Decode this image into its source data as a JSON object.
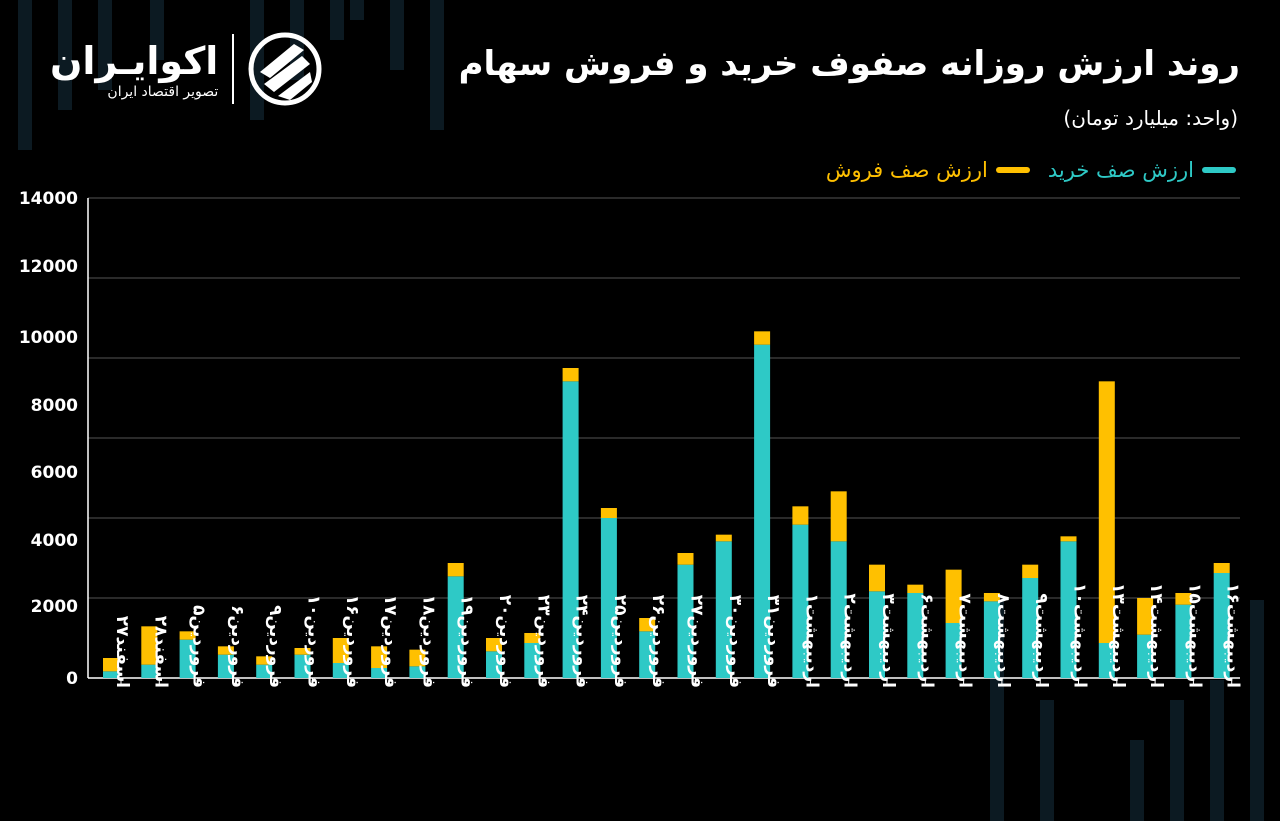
{
  "header": {
    "title": "روند ارزش روزانه صفوف خرید و فروش سهام",
    "unit": "(واحد: میلیارد تومان)"
  },
  "brand": {
    "name": "اکوایـران",
    "tagline": "تصویر اقتصاد ایران",
    "icon": "ekoiran-logo-icon"
  },
  "legend": {
    "buy": "ارزش صف خرید",
    "sell": "ارزش صف فروش"
  },
  "colors": {
    "buy": "#2ec9c6",
    "sell": "#ffc000",
    "grid": "#555555",
    "background": "#000000"
  },
  "chart_data": {
    "type": "bar",
    "stacked": true,
    "ylim": [
      0,
      12000
    ],
    "yticks": [
      0,
      2000,
      4000,
      6000,
      8000,
      10000,
      12000,
      14000
    ],
    "ytick_labels": [
      "0",
      "2000",
      "4000",
      "6000",
      "8000",
      "10000",
      "12000",
      "14000"
    ],
    "categories": [
      "اسفند۲۷",
      "اسفند۲۸",
      "فروردین۵",
      "فروردین۶",
      "فروردین۹",
      "فروردین۱۰",
      "فروردین۱۶",
      "فروردین۱۷",
      "فروردین۱۸",
      "فروردین۱۹",
      "فروردین۲۰",
      "فروردین۲۳",
      "فروردین۲۴",
      "فروردین۲۵",
      "فروردین۲۶",
      "فروردین۲۷",
      "فروردین۳۰",
      "فروردین۳۱",
      "اردیبهشت۱",
      "اردیبهشت۲",
      "اردیبهشت۳",
      "اردیبهشت۶",
      "اردیبهشت۷",
      "اردیبهشت۸",
      "اردیبهشت۹",
      "اردیبهشت۱۰",
      "اردیبهشت۱۳",
      "اردیبهشت۱۴",
      "اردیبهشت۱۵",
      "اردیبهشت۱۶"
    ],
    "series": [
      {
        "name": "ارزش صف خرید",
        "values": [
          200,
          400,
          1150,
          700,
          400,
          700,
          450,
          300,
          350,
          3050,
          800,
          1050,
          8900,
          4800,
          1400,
          3400,
          4100,
          10000,
          4600,
          4100,
          2600,
          2550,
          1650,
          2300,
          3000,
          4100,
          1050,
          1300,
          2200,
          3150
        ]
      },
      {
        "name": "ارزش صف فروش",
        "values": [
          400,
          1150,
          250,
          250,
          250,
          200,
          750,
          650,
          500,
          400,
          400,
          300,
          400,
          300,
          400,
          350,
          200,
          400,
          550,
          1500,
          800,
          250,
          1600,
          250,
          400,
          150,
          7850,
          1100,
          350,
          300
        ]
      }
    ]
  }
}
